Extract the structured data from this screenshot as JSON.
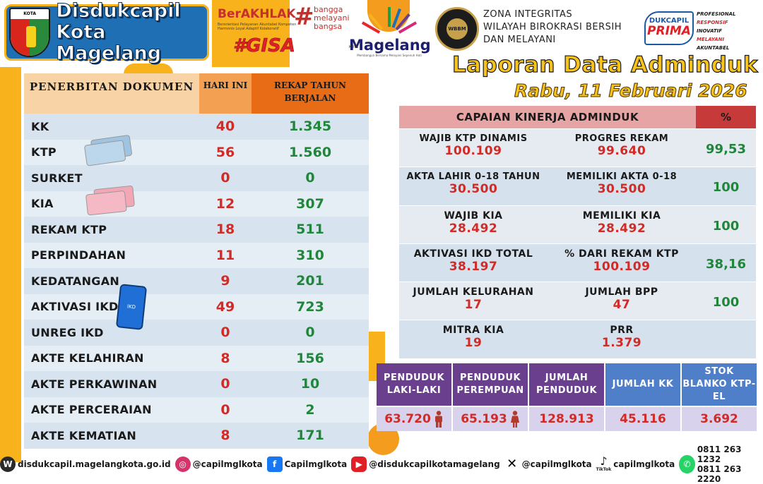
{
  "header": {
    "crest_text": "KOTA MAGELANG",
    "brand_line1": "Disdukcapil",
    "brand_line2": "Kota Magelang",
    "berakhlak": "BerAKHLAK",
    "berakhlak_sub": "Berorientasi Pelayanan Akuntabel Kompeten Harmonis Loyal Adaptif Kolaboratif",
    "hash": "#",
    "bangga": [
      "bangga",
      "melayani",
      "bangsa"
    ],
    "gisa": "#GISA",
    "magelang_kota": "KOTA",
    "magelang_name": "Magelang",
    "magelang_tagline": "Membangun Bersama Melayani Sepenuh Hati",
    "zi_badge": "WBBM",
    "zi_lines": [
      "ZONA INTEGRITAS",
      "WILAYAH BIROKRASI BERSIH",
      "DAN MELAYANI"
    ],
    "prima_top": "DUKCAPIL",
    "prima_main": "PRIMA",
    "prima_values": [
      "PROFESIONAL",
      "RESPONSIF",
      "INOVATIF",
      "MELAYANI",
      "AKUNTABEL"
    ],
    "title": "Laporan Data Adminduk",
    "date": "Rabu, 11 Februari 2026"
  },
  "colors": {
    "accent_yellow": "#f7b21c",
    "brand_blue": "#1f6fb4",
    "value_red": "#d32a26",
    "value_green": "#20873a"
  },
  "documents": {
    "head_doc": "PENERBITAN DOKUMEN",
    "head_today": "HARI INI",
    "head_year": "REKAP TAHUN BERJALAN",
    "rows": [
      {
        "label": "KK",
        "today": "40",
        "year": "1.345"
      },
      {
        "label": "KTP",
        "today": "56",
        "year": "1.560"
      },
      {
        "label": "SURKET",
        "today": "0",
        "year": "0"
      },
      {
        "label": "KIA",
        "today": "12",
        "year": "307"
      },
      {
        "label": "REKAM KTP",
        "today": "18",
        "year": "511"
      },
      {
        "label": "PERPINDAHAN",
        "today": "11",
        "year": "310"
      },
      {
        "label": "KEDATANGAN",
        "today": "9",
        "year": "201"
      },
      {
        "label": "AKTIVASI IKD",
        "today": "49",
        "year": "723"
      },
      {
        "label": "UNREG IKD",
        "today": "0",
        "year": "0"
      },
      {
        "label": "AKTE KELAHIRAN",
        "today": "8",
        "year": "156"
      },
      {
        "label": "AKTE PERKAWINAN",
        "today": "0",
        "year": "10"
      },
      {
        "label": "AKTE PERCERAIAN",
        "today": "0",
        "year": "2"
      },
      {
        "label": "AKTE KEMATIAN",
        "today": "8",
        "year": "171"
      }
    ],
    "ikd_phone": "IKD"
  },
  "kinerja": {
    "head": "CAPAIAN KINERJA ADMINDUK",
    "head_pct": "%",
    "rows": [
      {
        "l1": "WAJIB KTP DINAMIS",
        "v1": "100.109",
        "l2": "PROGRES REKAM",
        "v2": "99.640",
        "pct": "99,53"
      },
      {
        "l1": "AKTA LAHIR 0-18 TAHUN",
        "v1": "30.500",
        "l2": "MEMILIKI AKTA 0-18",
        "v2": "30.500",
        "pct": "100"
      },
      {
        "l1": "WAJIB KIA",
        "v1": "28.492",
        "l2": "MEMILIKI KIA",
        "v2": "28.492",
        "pct": "100"
      },
      {
        "l1": "AKTIVASI IKD TOTAL",
        "v1": "38.197",
        "l2": "% DARI REKAM KTP",
        "v2": "100.109",
        "pct": "38,16"
      },
      {
        "l1": "JUMLAH KELURAHAN",
        "v1": "17",
        "l2": "JUMLAH BPP",
        "v2": "47",
        "pct": "100"
      },
      {
        "l1": "MITRA KIA",
        "v1": "19",
        "l2": "PRR",
        "v2": "1.379",
        "pct": ""
      }
    ]
  },
  "population": {
    "headers": [
      "PENDUDUK LAKI-LAKI",
      "PENDUDUK PEREMPUAN",
      "JUMLAH PENDUDUK",
      "JUMLAH KK",
      "STOK BLANKO KTP-EL"
    ],
    "values": [
      "63.720",
      "65.193",
      "128.913",
      "45.116",
      "3.692"
    ]
  },
  "footer": {
    "website": "disdukcapil.magelangkota.go.id",
    "instagram": "@capilmglkota",
    "facebook": "Capilmglkota",
    "youtube": "@disdukcapilkotamagelang",
    "x": "@capilmglkota",
    "tiktok": "capilmglkota",
    "tiktok_label": "TikTok",
    "phone1": "0811 263 1232",
    "phone2": "0811 263 2220"
  }
}
